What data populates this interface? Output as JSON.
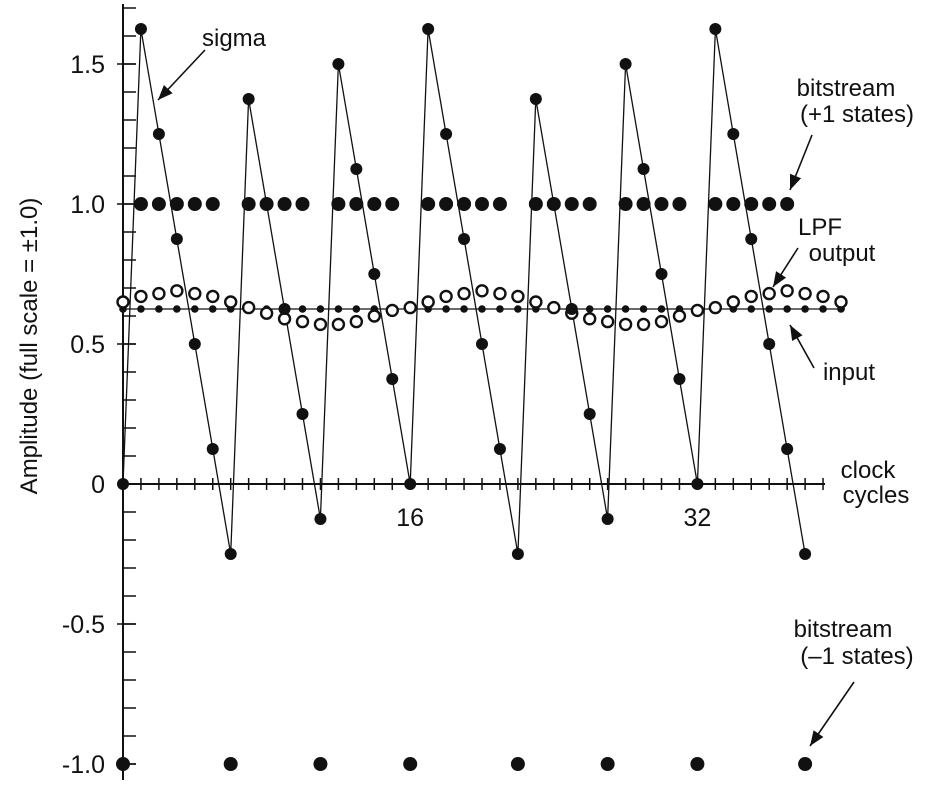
{
  "chart_data": {
    "type": "scatter",
    "title": "",
    "xlabel": "clock cycles",
    "x_label_lines": [
      "clock",
      "cycles"
    ],
    "ylabel": "Amplitude  (full scale = ±1.0)",
    "xlim": [
      0,
      39
    ],
    "ylim": [
      -1.0,
      1.7
    ],
    "x_ticks": [
      16,
      32
    ],
    "y_ticks": [
      {
        "value": 1.5,
        "label": "1.5"
      },
      {
        "value": 1.0,
        "label": "1.0"
      },
      {
        "value": 0.5,
        "label": "0.5"
      },
      {
        "value": 0,
        "label": "0"
      },
      {
        "value": -0.5,
        "label": "-0.5"
      },
      {
        "value": -1.0,
        "label": "-1.0"
      }
    ],
    "series": [
      {
        "name": "sigma",
        "style": "dots-connected",
        "values": [
          0,
          1.625,
          1.25,
          0.875,
          0.5,
          0.125,
          -0.25,
          1.375,
          1.0,
          0.625,
          0.25,
          -0.125,
          1.5,
          1.125,
          0.75,
          0.375,
          0,
          1.625,
          1.25,
          0.875,
          0.5,
          0.125,
          -0.25,
          1.375,
          1.0,
          0.625,
          0.25,
          -0.125,
          1.5,
          1.125,
          0.75,
          0.375,
          0,
          1.625,
          1.25,
          0.875,
          0.5,
          0.125,
          -0.25
        ]
      },
      {
        "name": "bitstream",
        "style": "large-dots",
        "values": [
          -1,
          1,
          1,
          1,
          1,
          1,
          -1,
          1,
          1,
          1,
          1,
          -1,
          1,
          1,
          1,
          1,
          -1,
          1,
          1,
          1,
          1,
          1,
          -1,
          1,
          1,
          1,
          1,
          -1,
          1,
          1,
          1,
          1,
          -1,
          1,
          1,
          1,
          1,
          1,
          -1
        ]
      },
      {
        "name": "LPF output",
        "style": "open-circles",
        "values": [
          0.65,
          0.67,
          0.68,
          0.69,
          0.68,
          0.67,
          0.65,
          0.63,
          0.61,
          0.59,
          0.58,
          0.57,
          0.57,
          0.58,
          0.6,
          0.62,
          0.63,
          0.65,
          0.67,
          0.68,
          0.69,
          0.68,
          0.67,
          0.65,
          0.63,
          0.61,
          0.59,
          0.58,
          0.57,
          0.57,
          0.58,
          0.6,
          0.62,
          0.63,
          0.65,
          0.67,
          0.68,
          0.69,
          0.68,
          0.67,
          0.65
        ]
      },
      {
        "name": "input",
        "style": "small-dots-line",
        "values": [
          0.625,
          0.625,
          0.625,
          0.625,
          0.625,
          0.625,
          0.625,
          0.625,
          0.625,
          0.625,
          0.625,
          0.625,
          0.625,
          0.625,
          0.625,
          0.625,
          0.625,
          0.625,
          0.625,
          0.625,
          0.625,
          0.625,
          0.625,
          0.625,
          0.625,
          0.625,
          0.625,
          0.625,
          0.625,
          0.625,
          0.625,
          0.625,
          0.625,
          0.625,
          0.625,
          0.625,
          0.625,
          0.625,
          0.625,
          0.625,
          0.625
        ]
      }
    ],
    "annotations": [
      {
        "id": "sigma",
        "lines": [
          "sigma"
        ]
      },
      {
        "id": "bitstream-plus",
        "lines": [
          "bitstream",
          "(+1 states)"
        ]
      },
      {
        "id": "lpf",
        "lines": [
          "LPF",
          "output"
        ]
      },
      {
        "id": "input",
        "lines": [
          "input"
        ]
      },
      {
        "id": "bitstream-minus",
        "lines": [
          "bitstream",
          "(–1 states)"
        ]
      }
    ],
    "grid": false,
    "legend": "none"
  }
}
